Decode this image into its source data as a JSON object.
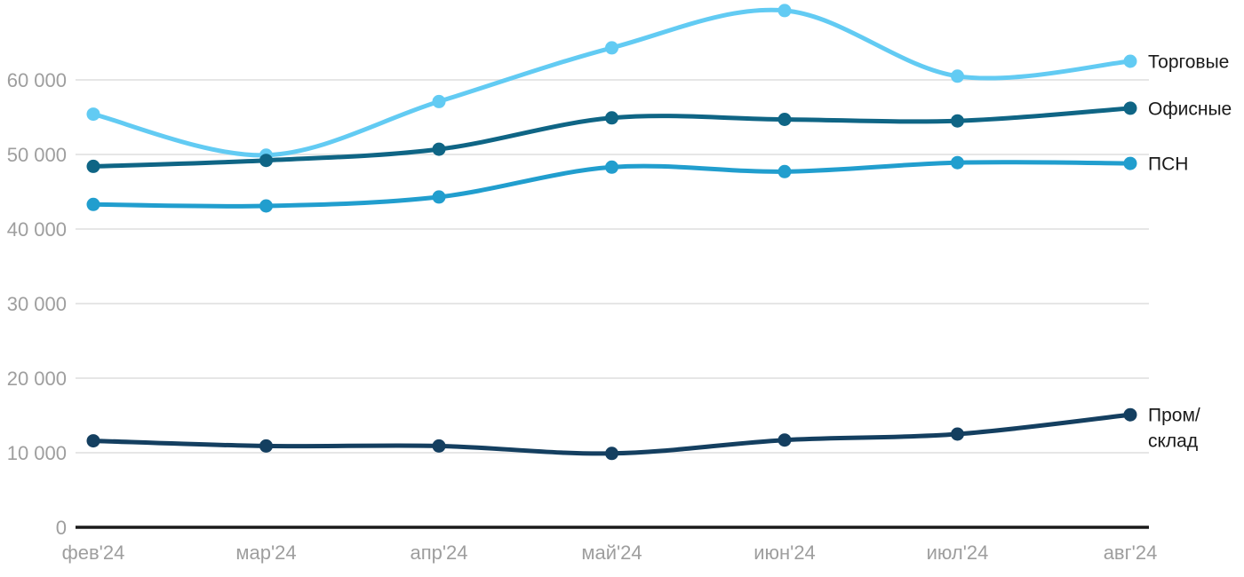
{
  "chart": {
    "background": "#ffffff",
    "grid_color": "#e6e6e6",
    "axis_color": "#1a1a1a",
    "tick_color": "#9e9e9e",
    "label_color": "#1a1a1a"
  },
  "chart_data": {
    "type": "line",
    "title": "",
    "xlabel": "",
    "ylabel": "",
    "grid": "horizontal",
    "legend_position": "line-end-right",
    "ylim": [
      0,
      70000
    ],
    "categories": [
      "фев'24",
      "мар'24",
      "апр'24",
      "май'24",
      "июн'24",
      "июл'24",
      "авг'24"
    ],
    "yticks": [
      {
        "value": 0,
        "label": "0"
      },
      {
        "value": 10000,
        "label": "10 000"
      },
      {
        "value": 20000,
        "label": "20 000"
      },
      {
        "value": 30000,
        "label": "30 000"
      },
      {
        "value": 40000,
        "label": "40 000"
      },
      {
        "value": 50000,
        "label": "50 000"
      },
      {
        "value": 60000,
        "label": "60 000"
      }
    ],
    "series": [
      {
        "name": "Торговые",
        "color": "#62cbf3",
        "values": [
          55400,
          49900,
          57100,
          64300,
          69300,
          60500,
          62500
        ]
      },
      {
        "name": "Офисные",
        "color": "#0f6585",
        "values": [
          48400,
          49200,
          50700,
          54900,
          54700,
          54500,
          56200
        ]
      },
      {
        "name": "ПСН",
        "color": "#219ece",
        "values": [
          43300,
          43100,
          44300,
          48300,
          47700,
          48900,
          48800
        ]
      },
      {
        "name": "Пром/склад",
        "color": "#143f60",
        "values": [
          11600,
          10900,
          10900,
          9900,
          11700,
          12500,
          15100
        ],
        "label_lines": [
          "Пром/",
          "склад"
        ]
      }
    ]
  }
}
